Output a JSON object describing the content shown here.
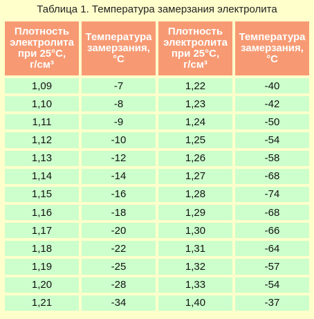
{
  "title": "Таблица 1. Температура замерзания электролита",
  "headers": [
    [
      "Плотность",
      "электролита",
      "при 25°C,",
      "г/см³"
    ],
    [
      "Температура",
      "замерзания,",
      "°C"
    ],
    [
      "Плотность",
      "электролита",
      "при 25°C,",
      "г/см³"
    ],
    [
      "Температура",
      "замерзания,",
      "°C"
    ]
  ],
  "rows": [
    [
      "1,09",
      "-7",
      "1,22",
      "-40"
    ],
    [
      "1,10",
      "-8",
      "1,23",
      "-42"
    ],
    [
      "1,11",
      "-9",
      "1,24",
      "-50"
    ],
    [
      "1,12",
      "-10",
      "1,25",
      "-54"
    ],
    [
      "1,13",
      "-12",
      "1,26",
      "-58"
    ],
    [
      "1,14",
      "-14",
      "1,27",
      "-68"
    ],
    [
      "1,15",
      "-16",
      "1,28",
      "-74"
    ],
    [
      "1,16",
      "-18",
      "1,29",
      "-68"
    ],
    [
      "1,17",
      "-20",
      "1,30",
      "-66"
    ],
    [
      "1,18",
      "-22",
      "1,31",
      "-64"
    ],
    [
      "1,19",
      "-25",
      "1,32",
      "-57"
    ],
    [
      "1,20",
      "-28",
      "1,33",
      "-54"
    ],
    [
      "1,21",
      "-34",
      "1,40",
      "-37"
    ]
  ],
  "colors": {
    "background": "#FFFFCC",
    "header": "#F79A73",
    "cell": "#CCFFCC"
  }
}
